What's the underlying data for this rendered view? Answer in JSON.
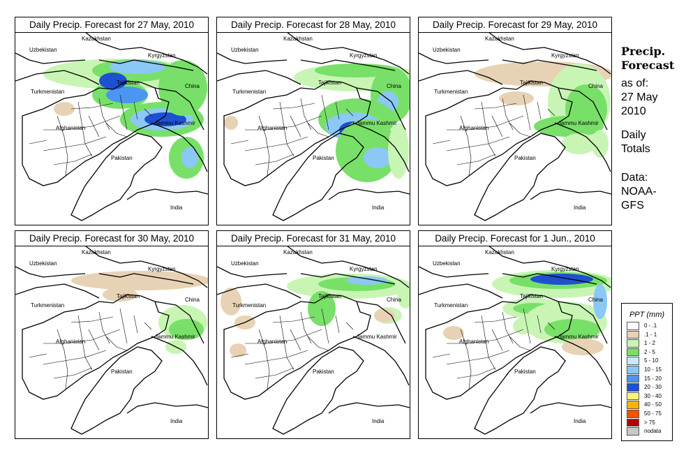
{
  "panels": [
    {
      "title": "Daily Precip. Forecast for  27 May, 2010",
      "day": 1
    },
    {
      "title": "Daily Precip. Forecast for  28 May, 2010",
      "day": 2
    },
    {
      "title": "Daily Precip. Forecast for  29 May, 2010",
      "day": 3
    },
    {
      "title": "Daily Precip. Forecast for  30 May, 2010",
      "day": 4
    },
    {
      "title": "Daily Precip. Forecast for  31 May, 2010",
      "day": 5
    },
    {
      "title": "Daily Precip. Forecast for  1 Jun., 2010",
      "day": 6
    }
  ],
  "map_labels": {
    "kazakhstan": "Kazakhstan",
    "uzbekistan": "Uzbekistan",
    "kyrgyzstan": "Kyrgyzstan",
    "turkmenistan": "Turkmenistan",
    "tajikistan": "Tajikistan",
    "china": "China",
    "afghanistan": "Afghanistan",
    "jammu_kashmir": "Jammu Kashmir",
    "pakistan": "Pakistan",
    "india": "India"
  },
  "side": {
    "title_line1": "Precip.",
    "title_line2": "Forecast",
    "asof_line1": "as of:",
    "asof_line2": "27 May",
    "asof_line3": "2010",
    "daily_line1": "Daily",
    "daily_line2": "Totals",
    "data_line1": "Data:",
    "data_line2": "NOAA-",
    "data_line3": "GFS"
  },
  "legend": {
    "title": "PPT (mm)",
    "items": [
      {
        "label": "0 - .1",
        "color": "#ffffff"
      },
      {
        "label": ".1 - 1",
        "color": "#e8d2b5"
      },
      {
        "label": "1 - 2",
        "color": "#c8f5b4"
      },
      {
        "label": "2 - 5",
        "color": "#78e068"
      },
      {
        "label": "5 - 10",
        "color": "#c6ecfa"
      },
      {
        "label": "10 - 15",
        "color": "#8cc8f5"
      },
      {
        "label": "15 - 20",
        "color": "#4b96f0"
      },
      {
        "label": "20 - 30",
        "color": "#1e50d2"
      },
      {
        "label": "30 - 40",
        "color": "#fff278"
      },
      {
        "label": "40 - 50",
        "color": "#ffb400"
      },
      {
        "label": "50 - 75",
        "color": "#ff5000"
      },
      {
        "label": "> 75",
        "color": "#b40000"
      },
      {
        "label": "nodata",
        "color": "#c8c8c8"
      }
    ]
  }
}
